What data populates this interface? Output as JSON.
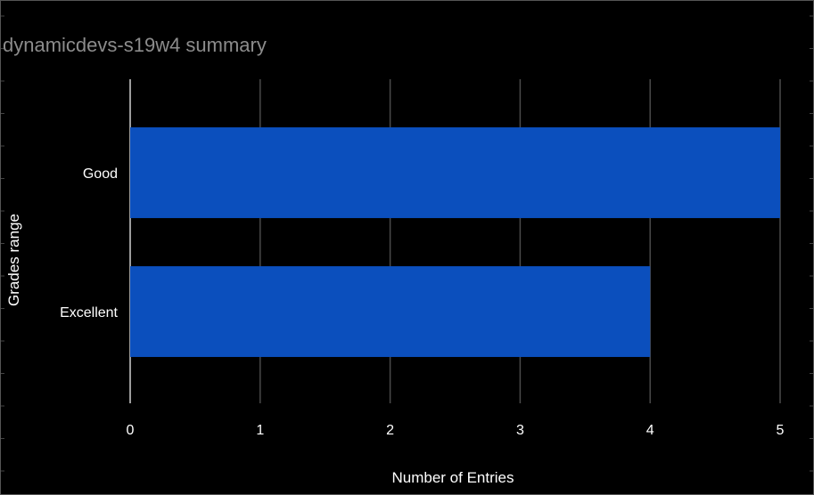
{
  "chart_data": {
    "type": "bar",
    "orientation": "horizontal",
    "title": "dynamicdevs-s19w4 summary",
    "xlabel": "Number of Entries",
    "ylabel": "Grades range",
    "categories": [
      "Good",
      "Excellent"
    ],
    "values": [
      5,
      4
    ],
    "xlim": [
      0,
      5
    ],
    "xticks": [
      "0",
      "1",
      "2",
      "3",
      "4",
      "5"
    ],
    "grid": true,
    "legend": "none",
    "colors": {
      "background": "#000000",
      "bar": "#0b4fbd",
      "title": "#8c8c8c",
      "text": "#ffffff",
      "grid": "#4a4a4a"
    }
  }
}
